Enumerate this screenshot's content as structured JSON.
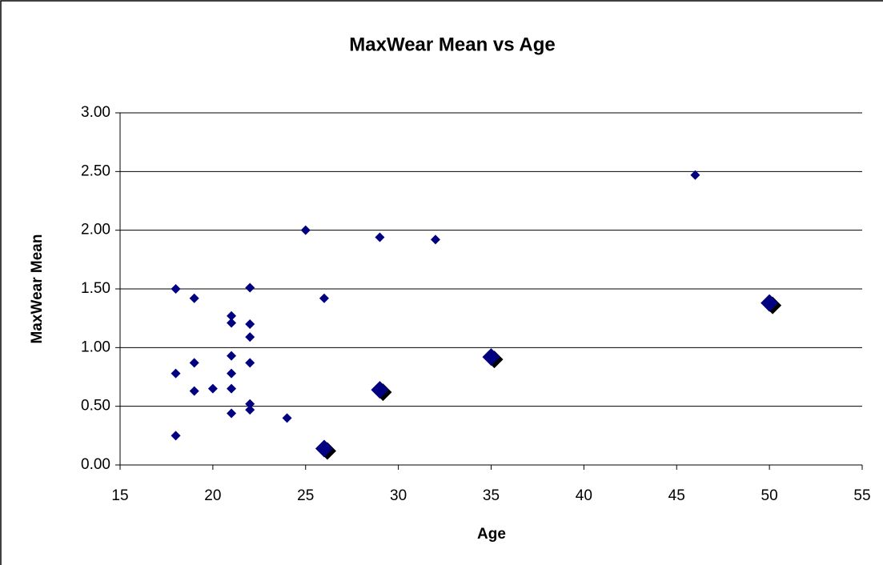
{
  "chart_data": {
    "type": "scatter",
    "title": "MaxWear Mean  vs Age",
    "x_label": "Age",
    "y_label": "MaxWear Mean",
    "series": [
      {
        "color": "#000080",
        "marker": "small-diamond",
        "x": [
          18,
          18,
          18,
          19,
          19,
          19,
          20,
          21,
          21,
          21,
          21,
          21,
          21,
          22,
          22,
          22,
          22,
          22,
          22,
          24,
          25,
          26,
          29,
          32,
          46
        ],
        "values": [
          1.5,
          0.78,
          0.25,
          1.42,
          0.87,
          0.63,
          0.65,
          1.27,
          1.21,
          0.93,
          0.78,
          0.65,
          0.44,
          1.51,
          1.2,
          1.09,
          0.87,
          0.52,
          0.47,
          0.4,
          2.0,
          1.42,
          1.94,
          1.92,
          2.47
        ]
      },
      {
        "color": "#000080",
        "marker": "large-diamond",
        "x": [
          26,
          29,
          35,
          50
        ],
        "values": [
          0.14,
          0.64,
          0.92,
          1.38
        ]
      }
    ],
    "xlim": [
      15,
      55
    ],
    "xticks": [
      15,
      20,
      25,
      30,
      35,
      40,
      45,
      50,
      55
    ],
    "ylim": [
      0,
      3
    ],
    "yticks": [
      {
        "value": 0,
        "label": "0.00"
      },
      {
        "value": 0.5,
        "label": "0.50"
      },
      {
        "value": 1,
        "label": "1.00"
      },
      {
        "value": 1.5,
        "label": "1.50"
      },
      {
        "value": 2,
        "label": "2.00"
      },
      {
        "value": 2.5,
        "label": "2.50"
      },
      {
        "value": 3,
        "label": "3.00"
      }
    ],
    "grid": true
  }
}
